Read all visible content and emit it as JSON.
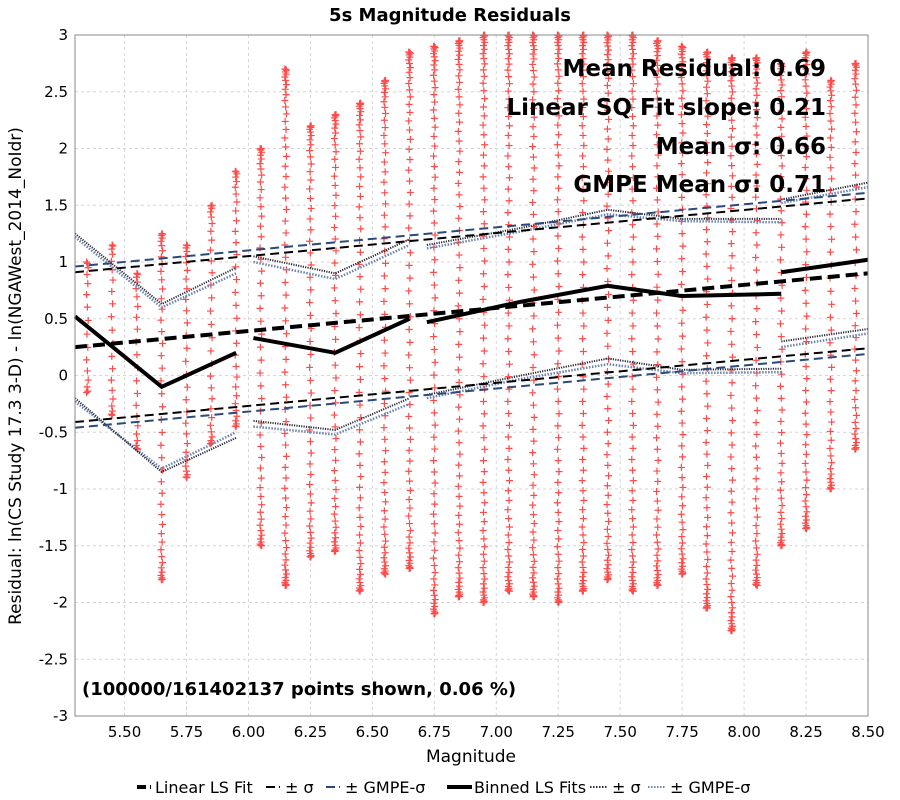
{
  "chart_data": {
    "type": "scatter",
    "title": "5s Magnitude Residuals",
    "xlabel": "Magnitude",
    "ylabel": "Residual: ln(CS Study 17.3 3-D) - ln(NGAWest_2014_NoIdr)",
    "xlim": [
      5.3,
      8.5
    ],
    "ylim": [
      -3,
      3
    ],
    "xticks": [
      "5.50",
      "5.75",
      "6.00",
      "6.25",
      "6.50",
      "6.75",
      "7.00",
      "7.25",
      "7.50",
      "7.75",
      "8.00",
      "8.25",
      "8.50"
    ],
    "yticks": [
      "-3",
      "-2.5",
      "-2",
      "-1.5",
      "-1",
      "-0.5",
      "0",
      "0.5",
      "1",
      "1.5",
      "2",
      "2.5",
      "3"
    ],
    "grid": true,
    "annotations": [
      "Mean Residual: 0.69",
      "Linear SQ Fit slope: 0.21",
      "Mean σ: 0.66",
      "GMPE Mean σ: 0.71"
    ],
    "note": "(100000/161402137 points shown, 0.06 %)",
    "legend": {
      "placement": "bottom",
      "entries": [
        "Linear LS Fit",
        "± σ",
        "± GMPE-σ",
        "Binned LS Fits",
        "± σ",
        "± GMPE-σ"
      ]
    },
    "colors": {
      "points": "#ff4a4a",
      "linear_fit": "#000000",
      "linear_sigma": "#000000",
      "linear_gmpe_sigma": "#2b4a7a",
      "binned_fit": "#000000",
      "binned_sigma": "#2a2a3a",
      "binned_gmpe_sigma": "#6a82b0"
    },
    "point_columns": [
      {
        "x": 5.35,
        "ymin": -0.15,
        "ymax": 1.0
      },
      {
        "x": 5.45,
        "ymin": -0.35,
        "ymax": 1.15
      },
      {
        "x": 5.55,
        "ymin": -0.65,
        "ymax": 0.9
      },
      {
        "x": 5.65,
        "ymin": -1.8,
        "ymax": 1.25
      },
      {
        "x": 5.75,
        "ymin": -0.9,
        "ymax": 1.15
      },
      {
        "x": 5.85,
        "ymin": -0.6,
        "ymax": 1.5
      },
      {
        "x": 5.95,
        "ymin": -0.45,
        "ymax": 1.8
      },
      {
        "x": 6.05,
        "ymin": -1.5,
        "ymax": 2.0
      },
      {
        "x": 6.15,
        "ymin": -1.85,
        "ymax": 2.7
      },
      {
        "x": 6.25,
        "ymin": -1.6,
        "ymax": 2.2
      },
      {
        "x": 6.35,
        "ymin": -1.55,
        "ymax": 2.3
      },
      {
        "x": 6.45,
        "ymin": -1.9,
        "ymax": 2.4
      },
      {
        "x": 6.55,
        "ymin": -1.75,
        "ymax": 2.6
      },
      {
        "x": 6.65,
        "ymin": -1.7,
        "ymax": 2.85
      },
      {
        "x": 6.75,
        "ymin": -2.1,
        "ymax": 2.9
      },
      {
        "x": 6.85,
        "ymin": -1.95,
        "ymax": 2.95
      },
      {
        "x": 6.95,
        "ymin": -2.0,
        "ymax": 3.0
      },
      {
        "x": 7.05,
        "ymin": -1.9,
        "ymax": 3.0
      },
      {
        "x": 7.15,
        "ymin": -1.95,
        "ymax": 3.0
      },
      {
        "x": 7.25,
        "ymin": -2.0,
        "ymax": 3.0
      },
      {
        "x": 7.35,
        "ymin": -1.9,
        "ymax": 3.0
      },
      {
        "x": 7.45,
        "ymin": -1.8,
        "ymax": 3.0
      },
      {
        "x": 7.55,
        "ymin": -1.9,
        "ymax": 3.0
      },
      {
        "x": 7.65,
        "ymin": -1.85,
        "ymax": 2.95
      },
      {
        "x": 7.75,
        "ymin": -1.75,
        "ymax": 2.9
      },
      {
        "x": 7.85,
        "ymin": -2.05,
        "ymax": 2.85
      },
      {
        "x": 7.95,
        "ymin": -2.25,
        "ymax": 2.8
      },
      {
        "x": 8.05,
        "ymin": -1.85,
        "ymax": 2.8
      },
      {
        "x": 8.15,
        "ymin": -1.5,
        "ymax": 2.75
      },
      {
        "x": 8.25,
        "ymin": -1.35,
        "ymax": 2.85
      },
      {
        "x": 8.35,
        "ymin": -1.0,
        "ymax": 2.6
      },
      {
        "x": 8.45,
        "ymin": -0.65,
        "ymax": 2.75
      }
    ],
    "linear_fit": {
      "x": [
        5.3,
        8.5
      ],
      "y": [
        0.25,
        0.9
      ]
    },
    "linear_sigma_upper": {
      "x": [
        5.3,
        8.5
      ],
      "y": [
        0.91,
        1.56
      ]
    },
    "linear_sigma_lower": {
      "x": [
        5.3,
        8.5
      ],
      "y": [
        -0.41,
        0.24
      ]
    },
    "linear_gmpe_upper": {
      "x": [
        5.3,
        8.5
      ],
      "y": [
        0.96,
        1.61
      ]
    },
    "linear_gmpe_lower": {
      "x": [
        5.3,
        8.5
      ],
      "y": [
        -0.46,
        0.19
      ]
    },
    "binned_fits": [
      {
        "x": [
          5.3,
          5.65,
          5.95
        ],
        "y": [
          0.52,
          -0.1,
          0.2
        ]
      },
      {
        "x": [
          6.02,
          6.35,
          6.65
        ],
        "y": [
          0.33,
          0.2,
          0.5
        ]
      },
      {
        "x": [
          6.72,
          7.1,
          7.45,
          7.75,
          8.15
        ],
        "y": [
          0.47,
          0.65,
          0.79,
          0.7,
          0.72
        ]
      },
      {
        "x": [
          8.15,
          8.5
        ],
        "y": [
          0.91,
          1.02
        ]
      }
    ],
    "binned_sigma": [
      {
        "x": [
          5.3,
          5.65,
          5.95
        ],
        "y": [
          1.25,
          0.63,
          0.95
        ]
      },
      {
        "x": [
          6.02,
          6.35,
          6.65
        ],
        "y": [
          1.05,
          0.9,
          1.2
        ]
      },
      {
        "x": [
          6.72,
          7.1,
          7.45,
          7.75,
          8.15
        ],
        "y": [
          1.15,
          1.3,
          1.46,
          1.38,
          1.38
        ]
      },
      {
        "x": [
          8.15,
          8.5
        ],
        "y": [
          1.55,
          1.7
        ]
      },
      {
        "x": [
          5.3,
          5.65,
          5.95
        ],
        "y": [
          -0.2,
          -0.85,
          -0.55
        ]
      },
      {
        "x": [
          6.02,
          6.35,
          6.65
        ],
        "y": [
          -0.4,
          -0.48,
          -0.2
        ]
      },
      {
        "x": [
          6.72,
          7.1,
          7.45,
          7.75,
          8.15
        ],
        "y": [
          -0.17,
          0.0,
          0.15,
          0.05,
          0.06
        ]
      },
      {
        "x": [
          8.15,
          8.5
        ],
        "y": [
          0.3,
          0.41
        ]
      }
    ],
    "binned_gmpe_sigma": [
      {
        "x": [
          5.3,
          5.65,
          5.95
        ],
        "y": [
          1.22,
          0.6,
          0.9
        ]
      },
      {
        "x": [
          6.02,
          6.35,
          6.65
        ],
        "y": [
          1.0,
          0.85,
          1.15
        ]
      },
      {
        "x": [
          6.72,
          7.1,
          7.45,
          7.75,
          8.15
        ],
        "y": [
          1.12,
          1.27,
          1.42,
          1.36,
          1.35
        ]
      },
      {
        "x": [
          8.15,
          8.5
        ],
        "y": [
          1.52,
          1.66
        ]
      },
      {
        "x": [
          5.3,
          5.65,
          5.95
        ],
        "y": [
          -0.23,
          -0.82,
          -0.5
        ]
      },
      {
        "x": [
          6.02,
          6.35,
          6.65
        ],
        "y": [
          -0.45,
          -0.52,
          -0.25
        ]
      },
      {
        "x": [
          6.72,
          7.1,
          7.45,
          7.75,
          8.15
        ],
        "y": [
          -0.2,
          -0.03,
          0.1,
          0.02,
          0.03
        ]
      },
      {
        "x": [
          8.15,
          8.5
        ],
        "y": [
          0.25,
          0.37
        ]
      }
    ]
  }
}
